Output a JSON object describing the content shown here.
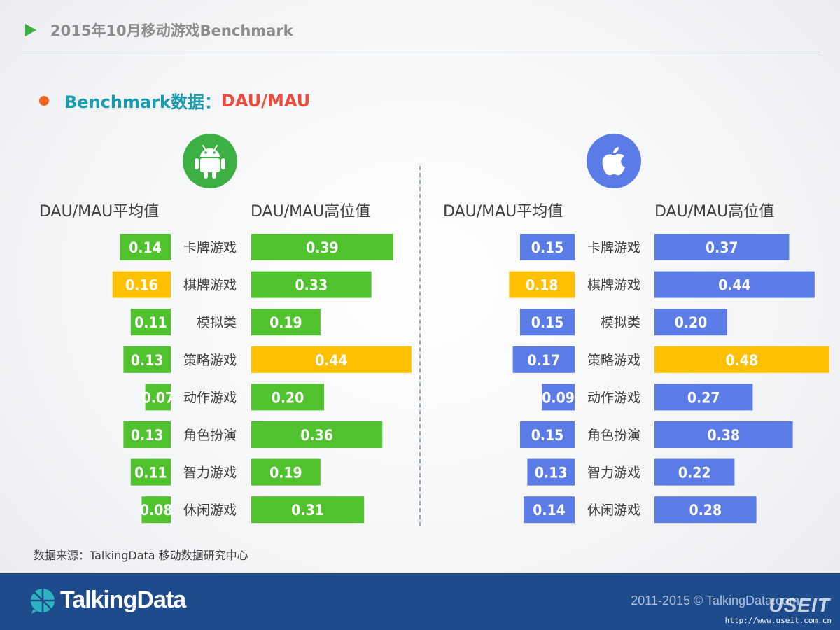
{
  "header": {
    "title": "2015年10月移动游戏Benchmark"
  },
  "subtitle": {
    "prefix": "Benchmark数据：",
    "highlight": "DAU/MAU"
  },
  "colors": {
    "android": "#50c22e",
    "ios": "#5b7be6",
    "highlight": "#ffc000",
    "accent_text": "#ef4a3c"
  },
  "columns": {
    "avg_label": "DAU/MAU平均值",
    "high_label": "DAU/MAU高位值"
  },
  "chart_data": [
    {
      "type": "bar",
      "platform_icon": "android-icon",
      "categories": [
        "卡牌游戏",
        "棋牌游戏",
        "模拟类",
        "策略游戏",
        "动作游戏",
        "角色扮演",
        "智力游戏",
        "休闲游戏"
      ],
      "series": [
        {
          "name": "DAU/MAU平均值",
          "values": [
            0.14,
            0.16,
            0.11,
            0.13,
            0.07,
            0.13,
            0.11,
            0.08
          ],
          "highlight_index": 1
        },
        {
          "name": "DAU/MAU高位值",
          "values": [
            0.39,
            0.33,
            0.19,
            0.44,
            0.2,
            0.36,
            0.19,
            0.31
          ],
          "highlight_index": 3
        }
      ]
    },
    {
      "type": "bar",
      "platform_icon": "apple-icon",
      "categories": [
        "卡牌游戏",
        "棋牌游戏",
        "模拟类",
        "策略游戏",
        "动作游戏",
        "角色扮演",
        "智力游戏",
        "休闲游戏"
      ],
      "series": [
        {
          "name": "DAU/MAU平均值",
          "values": [
            0.15,
            0.18,
            0.15,
            0.17,
            0.09,
            0.15,
            0.13,
            0.14
          ],
          "highlight_index": 1
        },
        {
          "name": "DAU/MAU高位值",
          "values": [
            0.37,
            0.44,
            0.2,
            0.48,
            0.27,
            0.38,
            0.22,
            0.28
          ],
          "highlight_index": 3
        }
      ]
    }
  ],
  "source": "数据来源：TalkingData 移动数据研究中心",
  "footer": {
    "logo_text": "TalkingData",
    "copyright": "2011-2015 © TalkingData.com",
    "watermark": "USEIT",
    "watermark_url": "http://www.useit.com.cn"
  }
}
